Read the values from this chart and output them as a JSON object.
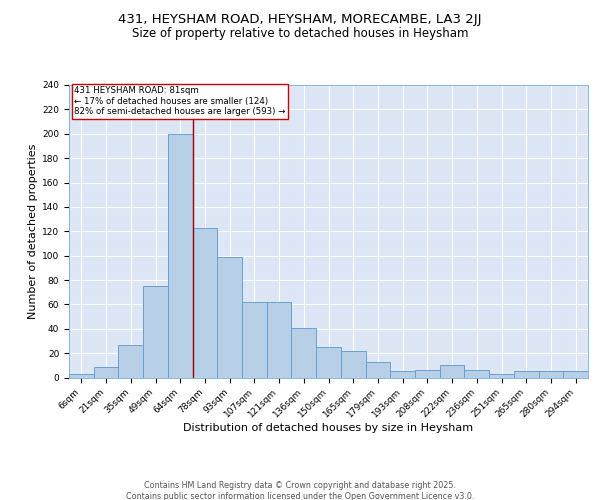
{
  "title1": "431, HEYSHAM ROAD, HEYSHAM, MORECAMBE, LA3 2JJ",
  "title2": "Size of property relative to detached houses in Heysham",
  "xlabel": "Distribution of detached houses by size in Heysham",
  "ylabel": "Number of detached properties",
  "categories": [
    "6sqm",
    "21sqm",
    "35sqm",
    "49sqm",
    "64sqm",
    "78sqm",
    "93sqm",
    "107sqm",
    "121sqm",
    "136sqm",
    "150sqm",
    "165sqm",
    "179sqm",
    "193sqm",
    "208sqm",
    "222sqm",
    "236sqm",
    "251sqm",
    "265sqm",
    "280sqm",
    "294sqm"
  ],
  "values": [
    3,
    9,
    27,
    75,
    200,
    123,
    99,
    62,
    62,
    41,
    25,
    22,
    13,
    5,
    6,
    10,
    6,
    3,
    5,
    5,
    5
  ],
  "bar_color": "#b8cfe8",
  "bar_edge_color": "#6aa0d4",
  "bg_color": "#dce6f5",
  "grid_color": "#ffffff",
  "vline_color": "#990000",
  "vline_x": 4.5,
  "annotation_text": "431 HEYSHAM ROAD: 81sqm\n← 17% of detached houses are smaller (124)\n82% of semi-detached houses are larger (593) →",
  "annotation_box_color": "#ffffff",
  "annotation_box_edge": "#cc0000",
  "footer1": "Contains HM Land Registry data © Crown copyright and database right 2025.",
  "footer2": "Contains public sector information licensed under the Open Government Licence v3.0.",
  "ylim": [
    0,
    240
  ],
  "yticks": [
    0,
    20,
    40,
    60,
    80,
    100,
    120,
    140,
    160,
    180,
    200,
    220,
    240
  ],
  "title1_fontsize": 9.5,
  "title2_fontsize": 8.5,
  "tick_fontsize": 6.5,
  "label_fontsize": 8,
  "footer_fontsize": 5.8,
  "ann_fontsize": 6.2
}
